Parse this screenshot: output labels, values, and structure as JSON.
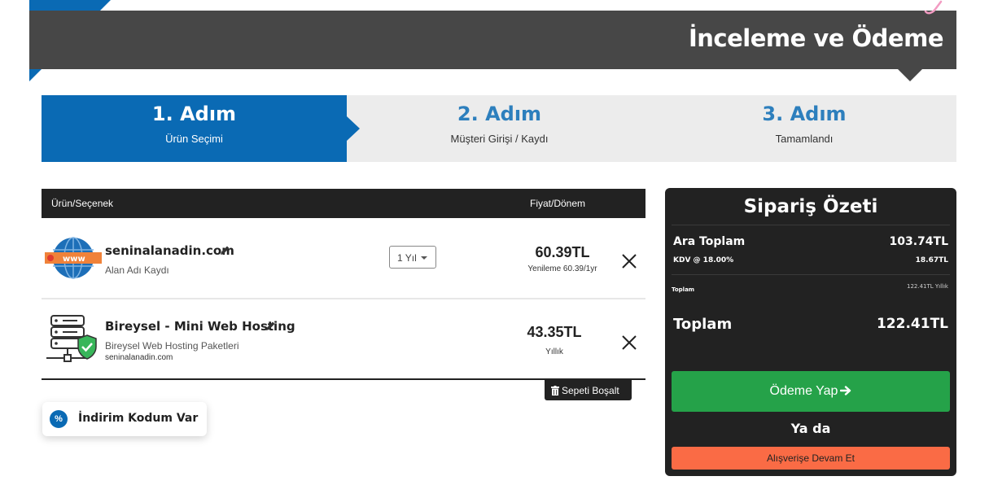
{
  "header": {
    "title": "İnceleme ve Ödeme"
  },
  "steps": [
    {
      "number": "1. Adım",
      "label": "Ürün Seçimi",
      "active": true
    },
    {
      "number": "2. Adım",
      "label": "Müşteri Girişi / Kaydı",
      "active": false
    },
    {
      "number": "3. Adım",
      "label": "Tamamlandı",
      "active": false
    }
  ],
  "cart": {
    "headers": {
      "product": "Ürün/Seçenek",
      "price": "Fiyat/Dönem"
    },
    "items": [
      {
        "name": "seninalanadin.com",
        "description": "Alan Adı Kaydı",
        "period": "1 Yıl",
        "price": "60.39TL",
        "price_note": "Yenileme 60.39/1yr",
        "icon": "www-globe-icon"
      },
      {
        "name": "Bireysel - Mini Web Hosting",
        "description": "Bireysel Web Hosting Paketleri",
        "domain": "seninalanadin.com",
        "price": "43.35TL",
        "price_note": "Yıllık",
        "icon": "server-shield-icon"
      }
    ],
    "empty_cart_label": "Sepeti Boşalt"
  },
  "promo": {
    "badge": "%",
    "label": "İndirim Kodum Var"
  },
  "summary": {
    "title": "Sipariş Özeti",
    "subtotal_label": "Ara Toplam",
    "subtotal_value": "103.74TL",
    "tax_label": "KDV @ 18.00%",
    "tax_value": "18.67TL",
    "recurring_label": "Toplam",
    "recurring_value": "122.41TL Yıllık",
    "total_label": "Toplam",
    "total_value": "122.41TL",
    "pay_label": "Ödeme Yap",
    "or_label": "Ya da",
    "continue_label": "Alışverişe Devam Et"
  },
  "colors": {
    "brand_blue": "#0a6ab4",
    "step_text_blue": "#2d7fbd",
    "header_dark": "#474747",
    "panel_dark": "#222222",
    "pay_green": "#25a249",
    "continue_orange": "#fa6b45"
  }
}
